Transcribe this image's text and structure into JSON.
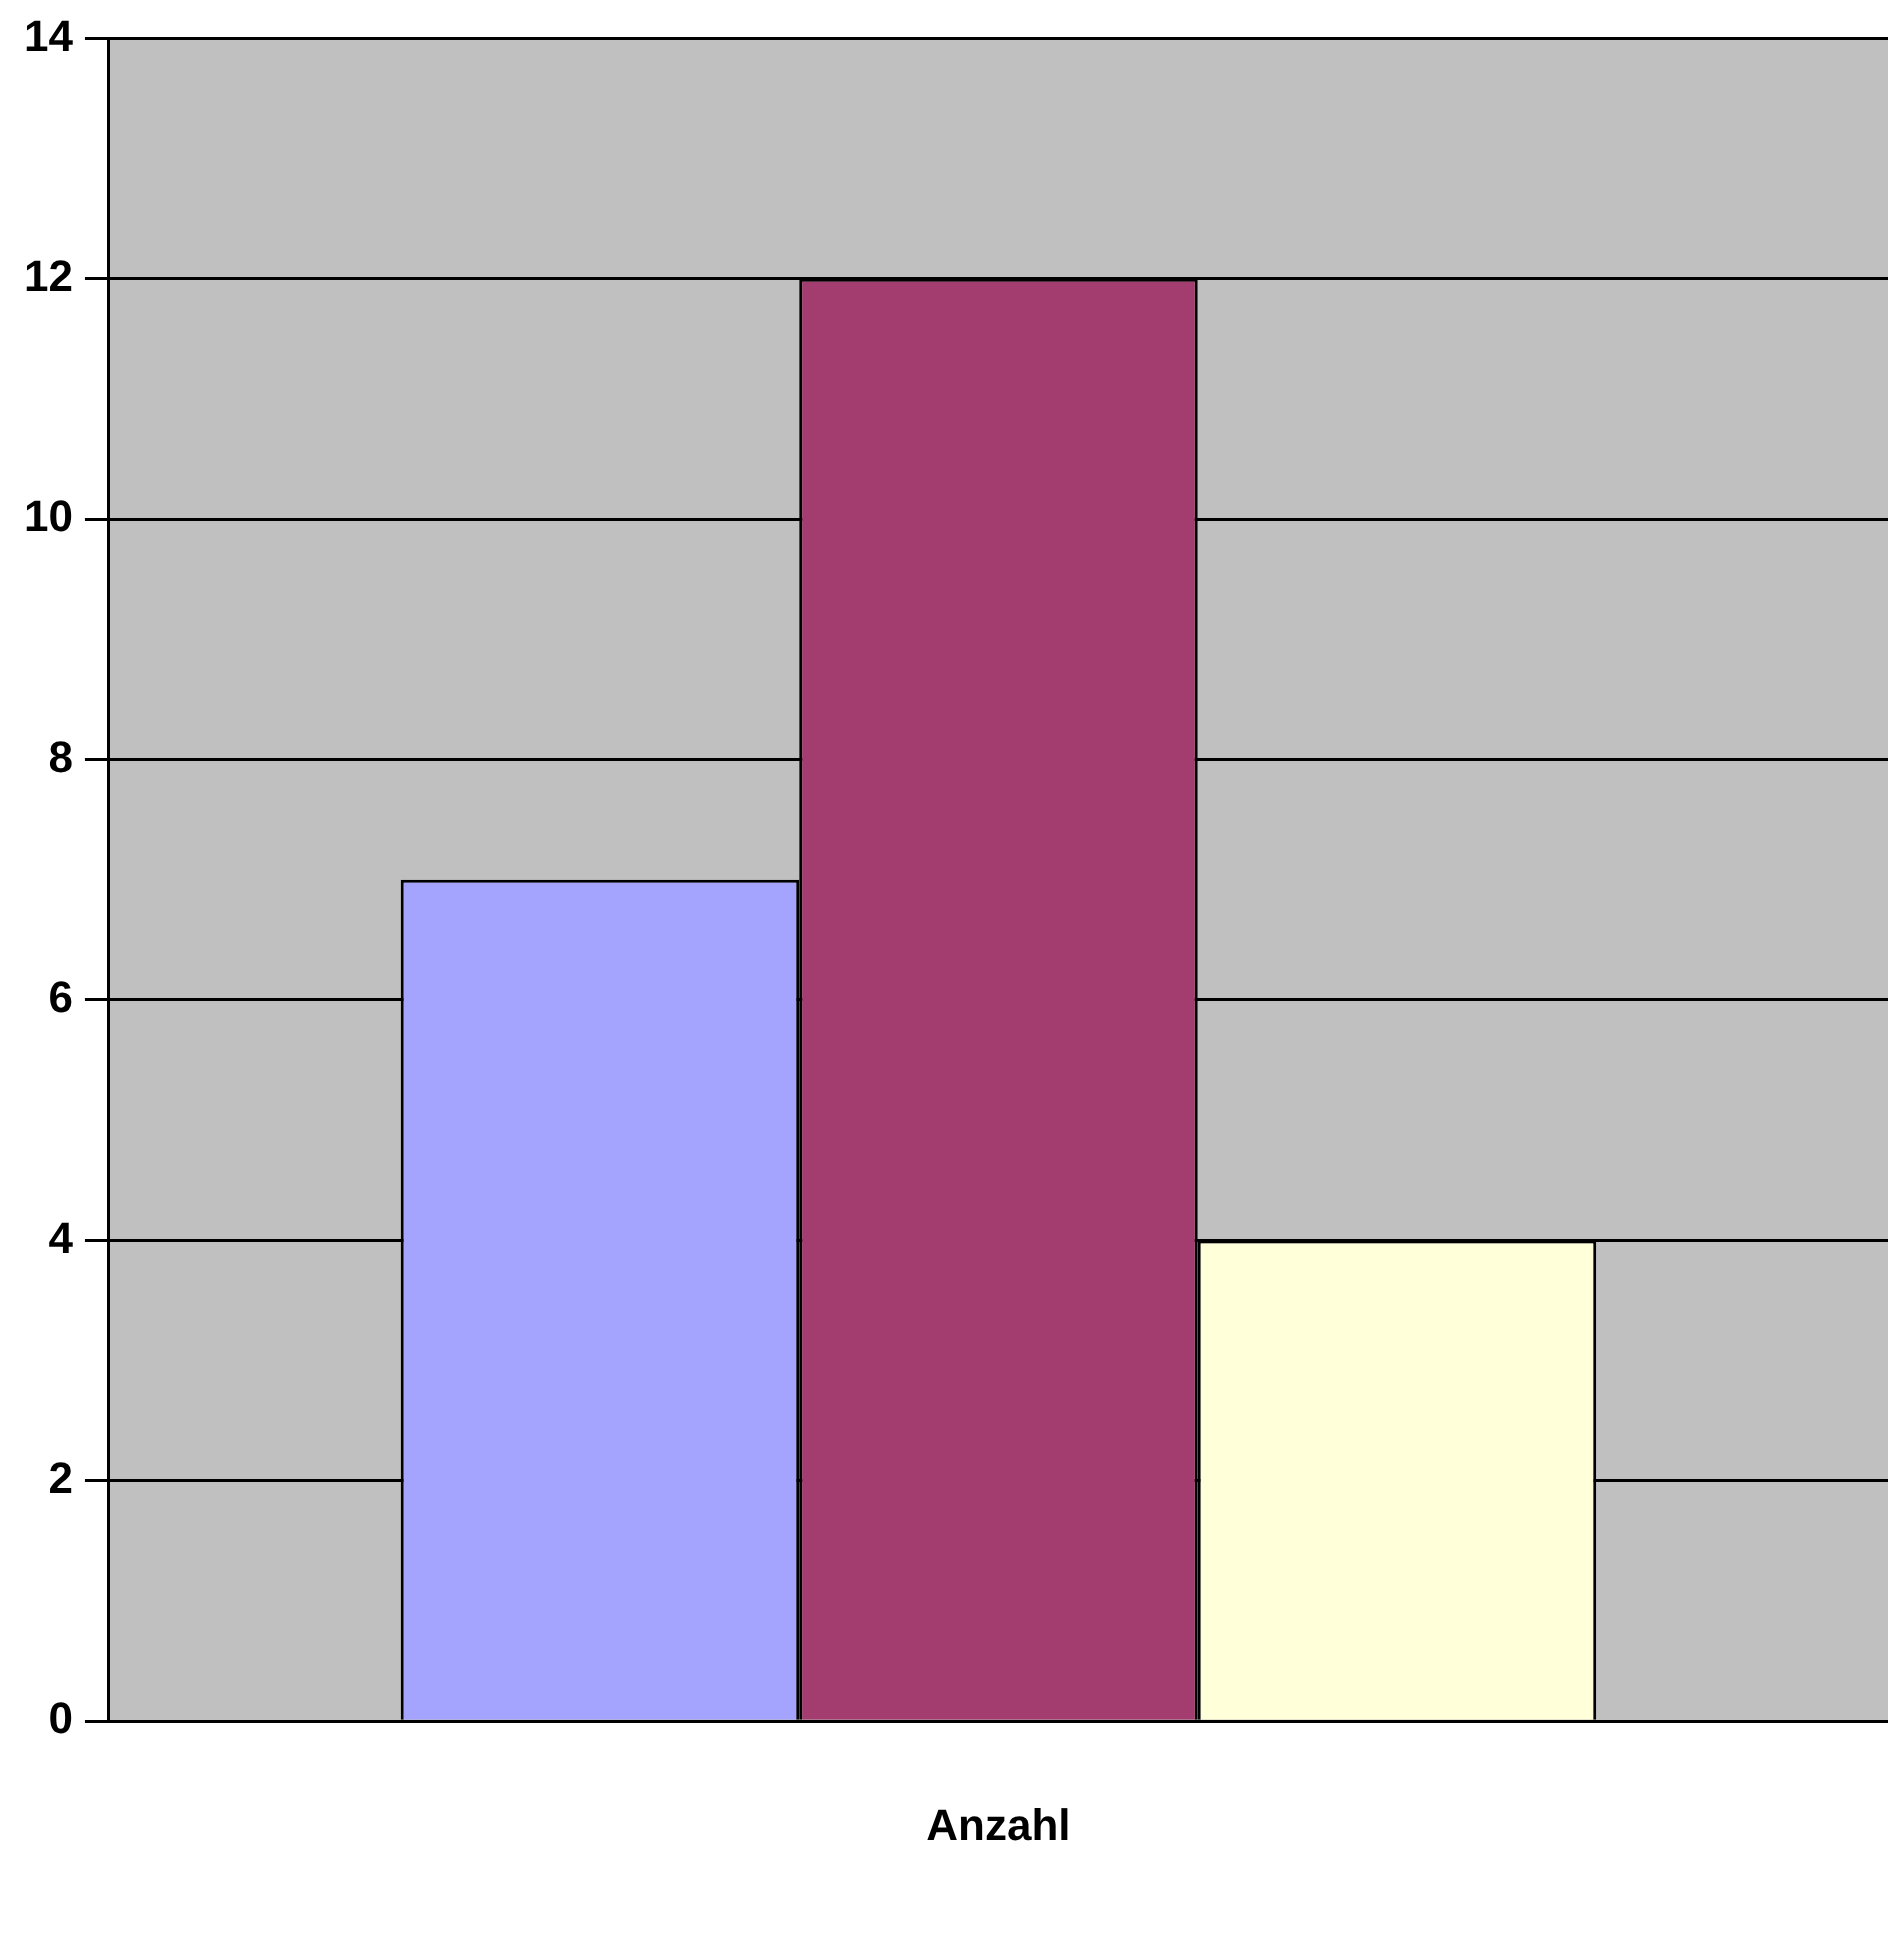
{
  "chart_data": {
    "type": "bar",
    "categories": [
      "Anzahl"
    ],
    "series": [
      {
        "color": "#a4a4ff",
        "values": [
          7
        ]
      },
      {
        "color": "#a33d6f",
        "values": [
          12
        ]
      },
      {
        "color": "#ffffd9",
        "values": [
          4
        ]
      }
    ],
    "ylim": [
      0,
      14
    ],
    "yticks": [
      0,
      2,
      4,
      6,
      8,
      10,
      12,
      14
    ],
    "grid": "y",
    "legend": false
  }
}
